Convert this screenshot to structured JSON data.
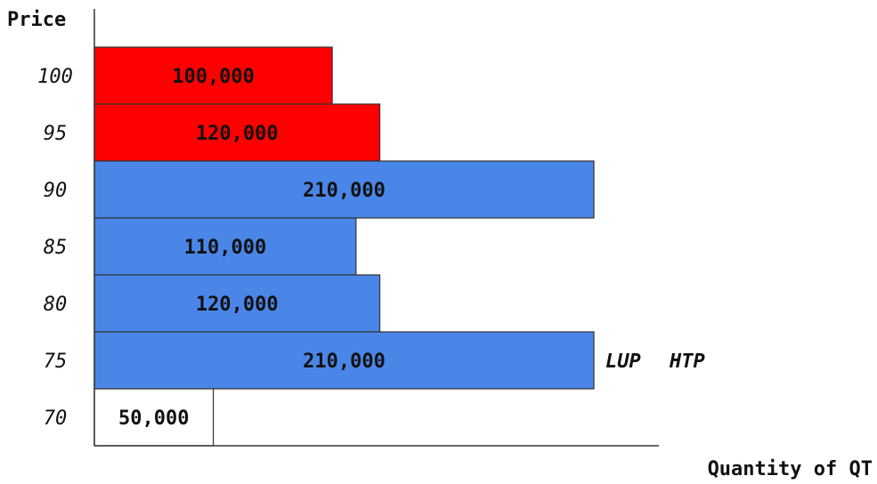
{
  "chart_data": {
    "type": "bar",
    "orientation": "horizontal",
    "ylabel": "Price",
    "xlabel": "Quantity of QT",
    "categories": [
      "100",
      "95",
      "90",
      "85",
      "80",
      "75",
      "70"
    ],
    "values": [
      100000,
      120000,
      210000,
      110000,
      120000,
      210000,
      50000
    ],
    "value_labels": [
      "100,000",
      "120,000",
      "210,000",
      "110,000",
      "120,000",
      "210,000",
      "50,000"
    ],
    "bar_colors": [
      "#ff0000",
      "#ff0000",
      "#4a86e8",
      "#4a86e8",
      "#4a86e8",
      "#4a86e8",
      "#ffffff"
    ],
    "xlim": [
      0,
      236000
    ],
    "grid": false,
    "annotations": [
      {
        "text": "LUP",
        "category": "75"
      },
      {
        "text": "HTP",
        "category": "75"
      }
    ]
  }
}
